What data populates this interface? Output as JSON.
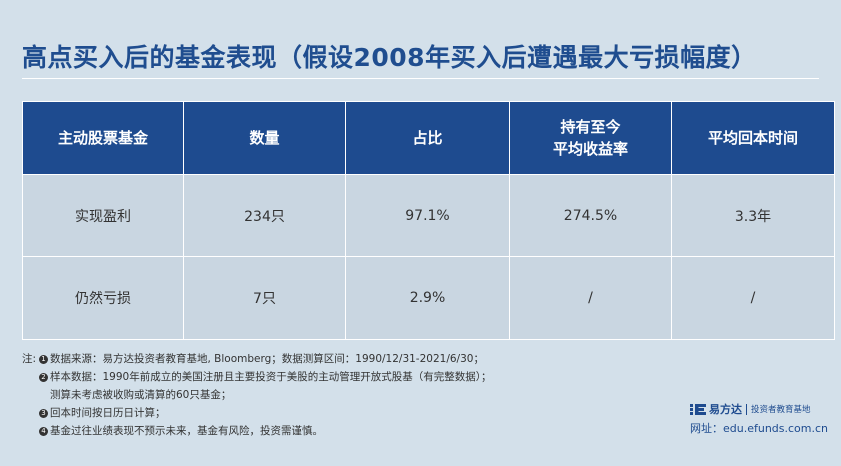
{
  "title": "高点买入后的基金表现（假设2008年买入后遭遇最大亏损幅度）",
  "table": {
    "headers": [
      [
        "主动股票基金"
      ],
      [
        "数量"
      ],
      [
        "占比"
      ],
      [
        "持有至今",
        "平均收益率"
      ],
      [
        "平均回本时间"
      ]
    ],
    "rows": [
      [
        "实现盈利",
        "234只",
        "97.1%",
        "274.5%",
        "3.3年"
      ],
      [
        "仍然亏损",
        "7只",
        "2.9%",
        "/",
        "/"
      ]
    ]
  },
  "notes": {
    "prefix": "注:",
    "items": [
      {
        "num": "1",
        "lines": [
          "数据来源：易方达投资者教育基地, Bloomberg；数据测算区间：1990/12/31-2021/6/30；"
        ]
      },
      {
        "num": "2",
        "lines": [
          "样本数据：1990年前成立的美国注册且主要投资于美股的主动管理开放式股基（有完整数据）；",
          "测算未考虑被收购或清算的60只基金；"
        ]
      },
      {
        "num": "3",
        "lines": [
          "回本时间按日历日计算；"
        ]
      },
      {
        "num": "4",
        "lines": [
          "基金过往业绩表现不预示未来，基金有风险，投资需谨慎。"
        ]
      }
    ]
  },
  "brand": {
    "name": "易方达",
    "tagline": "投资者教育基地",
    "website": "网址：edu.efunds.com.cn",
    "logo_icon": "efunds-logo-icon",
    "color": "#1e4b8f"
  }
}
